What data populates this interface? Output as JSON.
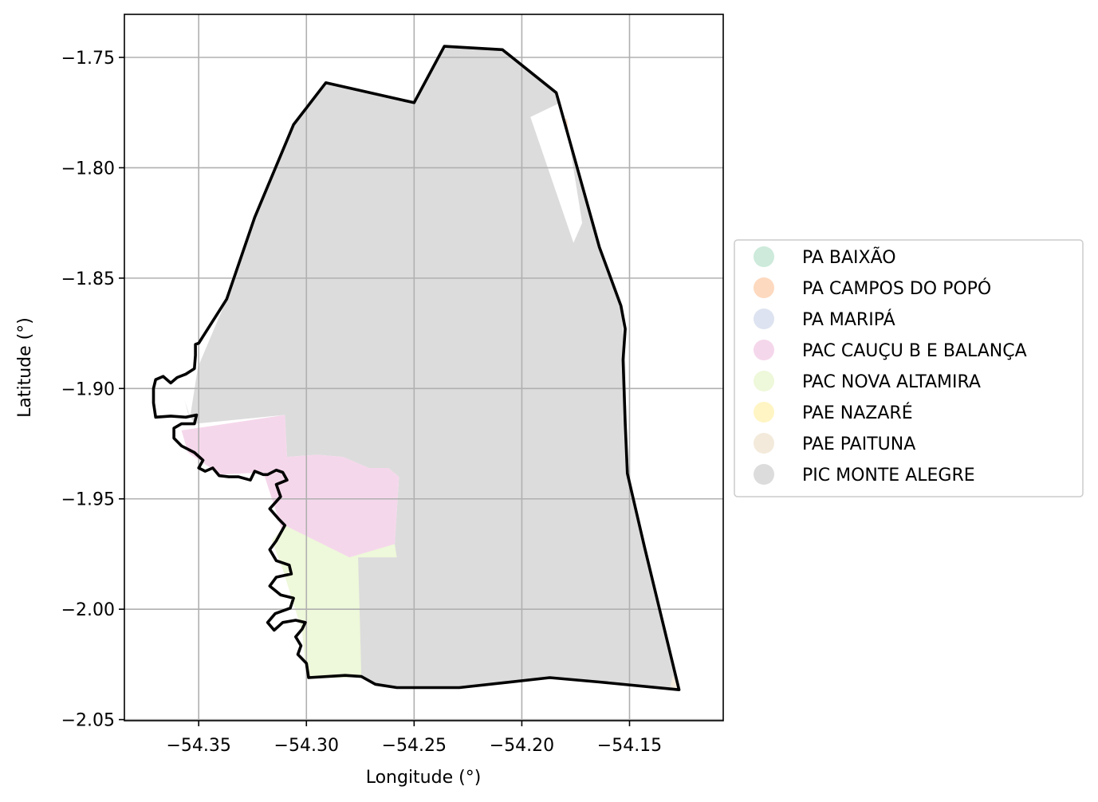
{
  "chart_data": {
    "type": "map",
    "xlabel": "Longitude (°)",
    "ylabel": "Latitude (°)",
    "xlim": [
      -54.3845,
      -54.1065
    ],
    "ylim": [
      -2.0505,
      -1.7305
    ],
    "xticks": [
      -54.35,
      -54.3,
      -54.25,
      -54.2,
      -54.15
    ],
    "yticks": [
      -1.75,
      -1.8,
      -1.85,
      -1.9,
      -1.95,
      -2.0,
      -2.05
    ],
    "xtick_labels": [
      "−54.35",
      "−54.30",
      "−54.25",
      "−54.20",
      "−54.15"
    ],
    "ytick_labels": [
      "−1.75",
      "−1.80",
      "−1.85",
      "−1.90",
      "−1.95",
      "−2.00",
      "−2.05"
    ],
    "grid": true,
    "legend_position": "right",
    "legend": [
      {
        "label": "PA BAIXÃO",
        "color": "#cdeadb"
      },
      {
        "label": "PA CAMPOS DO POPÓ",
        "color": "#fdd9bf"
      },
      {
        "label": "PA MARIPÁ",
        "color": "#dde3f0"
      },
      {
        "label": "PAC CAUÇU B E BALANÇA",
        "color": "#f5d7eb"
      },
      {
        "label": "PAC NOVA ALTAMIRA",
        "color": "#eef8da"
      },
      {
        "label": "PAE NAZARÉ",
        "color": "#fff5c4"
      },
      {
        "label": "PAE PAITUNA",
        "color": "#f3eadb"
      },
      {
        "label": "PIC MONTE ALEGRE",
        "color": "#dcdcdc"
      }
    ],
    "regions": [
      {
        "name": "PIC MONTE ALEGRE",
        "color": "#dcdcdc",
        "coords": [
          [
            -54.3587,
            -1.8975
          ],
          [
            -54.35,
            -1.8895
          ],
          [
            -54.337,
            -1.8595
          ],
          [
            -54.324,
            -1.8225
          ],
          [
            -54.306,
            -1.7805
          ],
          [
            -54.291,
            -1.7615
          ],
          [
            -54.25,
            -1.7705
          ],
          [
            -54.236,
            -1.745
          ],
          [
            -54.209,
            -1.7465
          ],
          [
            -54.184,
            -1.766
          ],
          [
            -54.164,
            -1.836
          ],
          [
            -54.154,
            -1.8625
          ],
          [
            -54.152,
            -1.887
          ],
          [
            -54.151,
            -1.9385
          ],
          [
            -54.143,
            -1.972
          ],
          [
            -54.127,
            -2.0365
          ],
          [
            -54.164,
            -2.033
          ],
          [
            -54.187,
            -2.031
          ],
          [
            -54.229,
            -2.0355
          ],
          [
            -54.258,
            -2.0355
          ],
          [
            -54.268,
            -2.034
          ],
          [
            -54.2745,
            -2.0305
          ],
          [
            -54.28,
            -1.9765
          ],
          [
            -54.259,
            -1.9705
          ],
          [
            -54.257,
            -1.94
          ],
          [
            -54.262,
            -1.936
          ],
          [
            -54.271,
            -1.936
          ],
          [
            -54.283,
            -1.931
          ],
          [
            -54.295,
            -1.93
          ],
          [
            -54.309,
            -1.931
          ],
          [
            -54.31,
            -1.912
          ],
          [
            -54.352,
            -1.916
          ],
          [
            -54.355,
            -1.911
          ]
        ]
      },
      {
        "name": "PAC CAUÇU B E BALANÇA",
        "color": "#f5d7eb",
        "coords": [
          [
            -54.358,
            -1.919
          ],
          [
            -54.31,
            -1.912
          ],
          [
            -54.309,
            -1.931
          ],
          [
            -54.295,
            -1.93
          ],
          [
            -54.283,
            -1.931
          ],
          [
            -54.271,
            -1.936
          ],
          [
            -54.262,
            -1.936
          ],
          [
            -54.257,
            -1.94
          ],
          [
            -54.259,
            -1.9705
          ],
          [
            -54.28,
            -1.9765
          ],
          [
            -54.31,
            -1.969
          ],
          [
            -54.314,
            -1.956
          ],
          [
            -54.32,
            -1.938
          ],
          [
            -54.34,
            -1.939
          ],
          [
            -54.355,
            -1.929
          ]
        ]
      },
      {
        "name": "PAC NOVA ALTAMIRA",
        "color": "#eef8da",
        "coords": [
          [
            -54.31,
            -1.962
          ],
          [
            -54.28,
            -1.9765
          ],
          [
            -54.259,
            -1.9705
          ],
          [
            -54.258,
            -1.9765
          ],
          [
            -54.276,
            -1.9765
          ],
          [
            -54.2745,
            -2.0305
          ],
          [
            -54.282,
            -2.031
          ],
          [
            -54.3,
            -2.0315
          ],
          [
            -54.302,
            -2.01
          ],
          [
            -54.311,
            -1.982
          ],
          [
            -54.316,
            -1.969
          ]
        ]
      },
      {
        "name": "PA CAMPOS DO POPÓ",
        "color": "#fdd9bf",
        "coords": [
          [
            -54.183,
            -1.777
          ],
          [
            -54.179,
            -1.778
          ],
          [
            -54.178,
            -1.786
          ]
        ]
      },
      {
        "name": "PAE PAITUNA",
        "color": "#f3eadb",
        "coords": [
          [
            -54.13,
            -2.03
          ],
          [
            -54.127,
            -2.0365
          ],
          [
            -54.131,
            -2.035
          ]
        ]
      }
    ],
    "holes": [
      [
        [
          -54.196,
          -1.777
        ],
        [
          -54.181,
          -1.77
        ],
        [
          -54.172,
          -1.825
        ],
        [
          -54.176,
          -1.834
        ]
      ],
      [
        [
          -54.36,
          -1.895
        ],
        [
          -54.35,
          -1.888
        ],
        [
          -54.354,
          -1.913
        ]
      ]
    ],
    "boundary": [
      [
        -54.35,
        -1.8795
      ],
      [
        -54.337,
        -1.8595
      ],
      [
        -54.324,
        -1.8225
      ],
      [
        -54.306,
        -1.7805
      ],
      [
        -54.291,
        -1.7615
      ],
      [
        -54.25,
        -1.7705
      ],
      [
        -54.236,
        -1.745
      ],
      [
        -54.209,
        -1.7465
      ],
      [
        -54.184,
        -1.766
      ],
      [
        -54.164,
        -1.836
      ],
      [
        -54.154,
        -1.8625
      ],
      [
        -54.152,
        -1.873
      ],
      [
        -54.153,
        -1.887
      ],
      [
        -54.152,
        -1.916
      ],
      [
        -54.151,
        -1.9385
      ],
      [
        -54.143,
        -1.972
      ],
      [
        -54.127,
        -2.0365
      ],
      [
        -54.164,
        -2.033
      ],
      [
        -54.187,
        -2.031
      ],
      [
        -54.229,
        -2.0355
      ],
      [
        -54.258,
        -2.0355
      ],
      [
        -54.268,
        -2.034
      ],
      [
        -54.2745,
        -2.0305
      ],
      [
        -54.282,
        -2.03
      ],
      [
        -54.299,
        -2.031
      ],
      [
        -54.3,
        -2.0245
      ],
      [
        -54.304,
        -2.0205
      ],
      [
        -54.3025,
        -2.0165
      ],
      [
        -54.305,
        -2.0125
      ],
      [
        -54.302,
        -2.009
      ],
      [
        -54.3005,
        -2.006
      ],
      [
        -54.305,
        -2.005
      ],
      [
        -54.311,
        -2.006
      ],
      [
        -54.315,
        -2.0095
      ],
      [
        -54.318,
        -2.006
      ],
      [
        -54.3145,
        -2.002
      ],
      [
        -54.3075,
        -1.9995
      ],
      [
        -54.306,
        -1.995
      ],
      [
        -54.312,
        -1.9935
      ],
      [
        -54.317,
        -1.9895
      ],
      [
        -54.314,
        -1.9855
      ],
      [
        -54.307,
        -1.984
      ],
      [
        -54.308,
        -1.98
      ],
      [
        -54.314,
        -1.978
      ],
      [
        -54.317,
        -1.973
      ],
      [
        -54.314,
        -1.969
      ],
      [
        -54.31,
        -1.962
      ],
      [
        -54.313,
        -1.959
      ],
      [
        -54.317,
        -1.9545
      ],
      [
        -54.312,
        -1.949
      ],
      [
        -54.314,
        -1.9435
      ],
      [
        -54.309,
        -1.9415
      ],
      [
        -54.311,
        -1.938
      ],
      [
        -54.314,
        -1.937
      ],
      [
        -54.318,
        -1.939
      ],
      [
        -54.32,
        -1.939
      ],
      [
        -54.324,
        -1.9375
      ],
      [
        -54.326,
        -1.9415
      ],
      [
        -54.3315,
        -1.94
      ],
      [
        -54.336,
        -1.94
      ],
      [
        -54.3405,
        -1.9395
      ],
      [
        -54.3435,
        -1.936
      ],
      [
        -54.347,
        -1.9375
      ],
      [
        -54.35,
        -1.936
      ],
      [
        -54.348,
        -1.9325
      ],
      [
        -54.352,
        -1.929
      ],
      [
        -54.358,
        -1.926
      ],
      [
        -54.3615,
        -1.9225
      ],
      [
        -54.3615,
        -1.918
      ],
      [
        -54.358,
        -1.916
      ],
      [
        -54.352,
        -1.916
      ],
      [
        -54.351,
        -1.912
      ],
      [
        -54.356,
        -1.913
      ],
      [
        -54.363,
        -1.9125
      ],
      [
        -54.37,
        -1.913
      ],
      [
        -54.371,
        -1.9065
      ],
      [
        -54.371,
        -1.9
      ],
      [
        -54.37,
        -1.896
      ],
      [
        -54.3665,
        -1.8945
      ],
      [
        -54.363,
        -1.8975
      ],
      [
        -54.36,
        -1.895
      ],
      [
        -54.356,
        -1.8935
      ],
      [
        -54.352,
        -1.891
      ],
      [
        -54.3515,
        -1.885
      ],
      [
        -54.3515,
        -1.88
      ],
      [
        -54.35,
        -1.8795
      ]
    ]
  }
}
